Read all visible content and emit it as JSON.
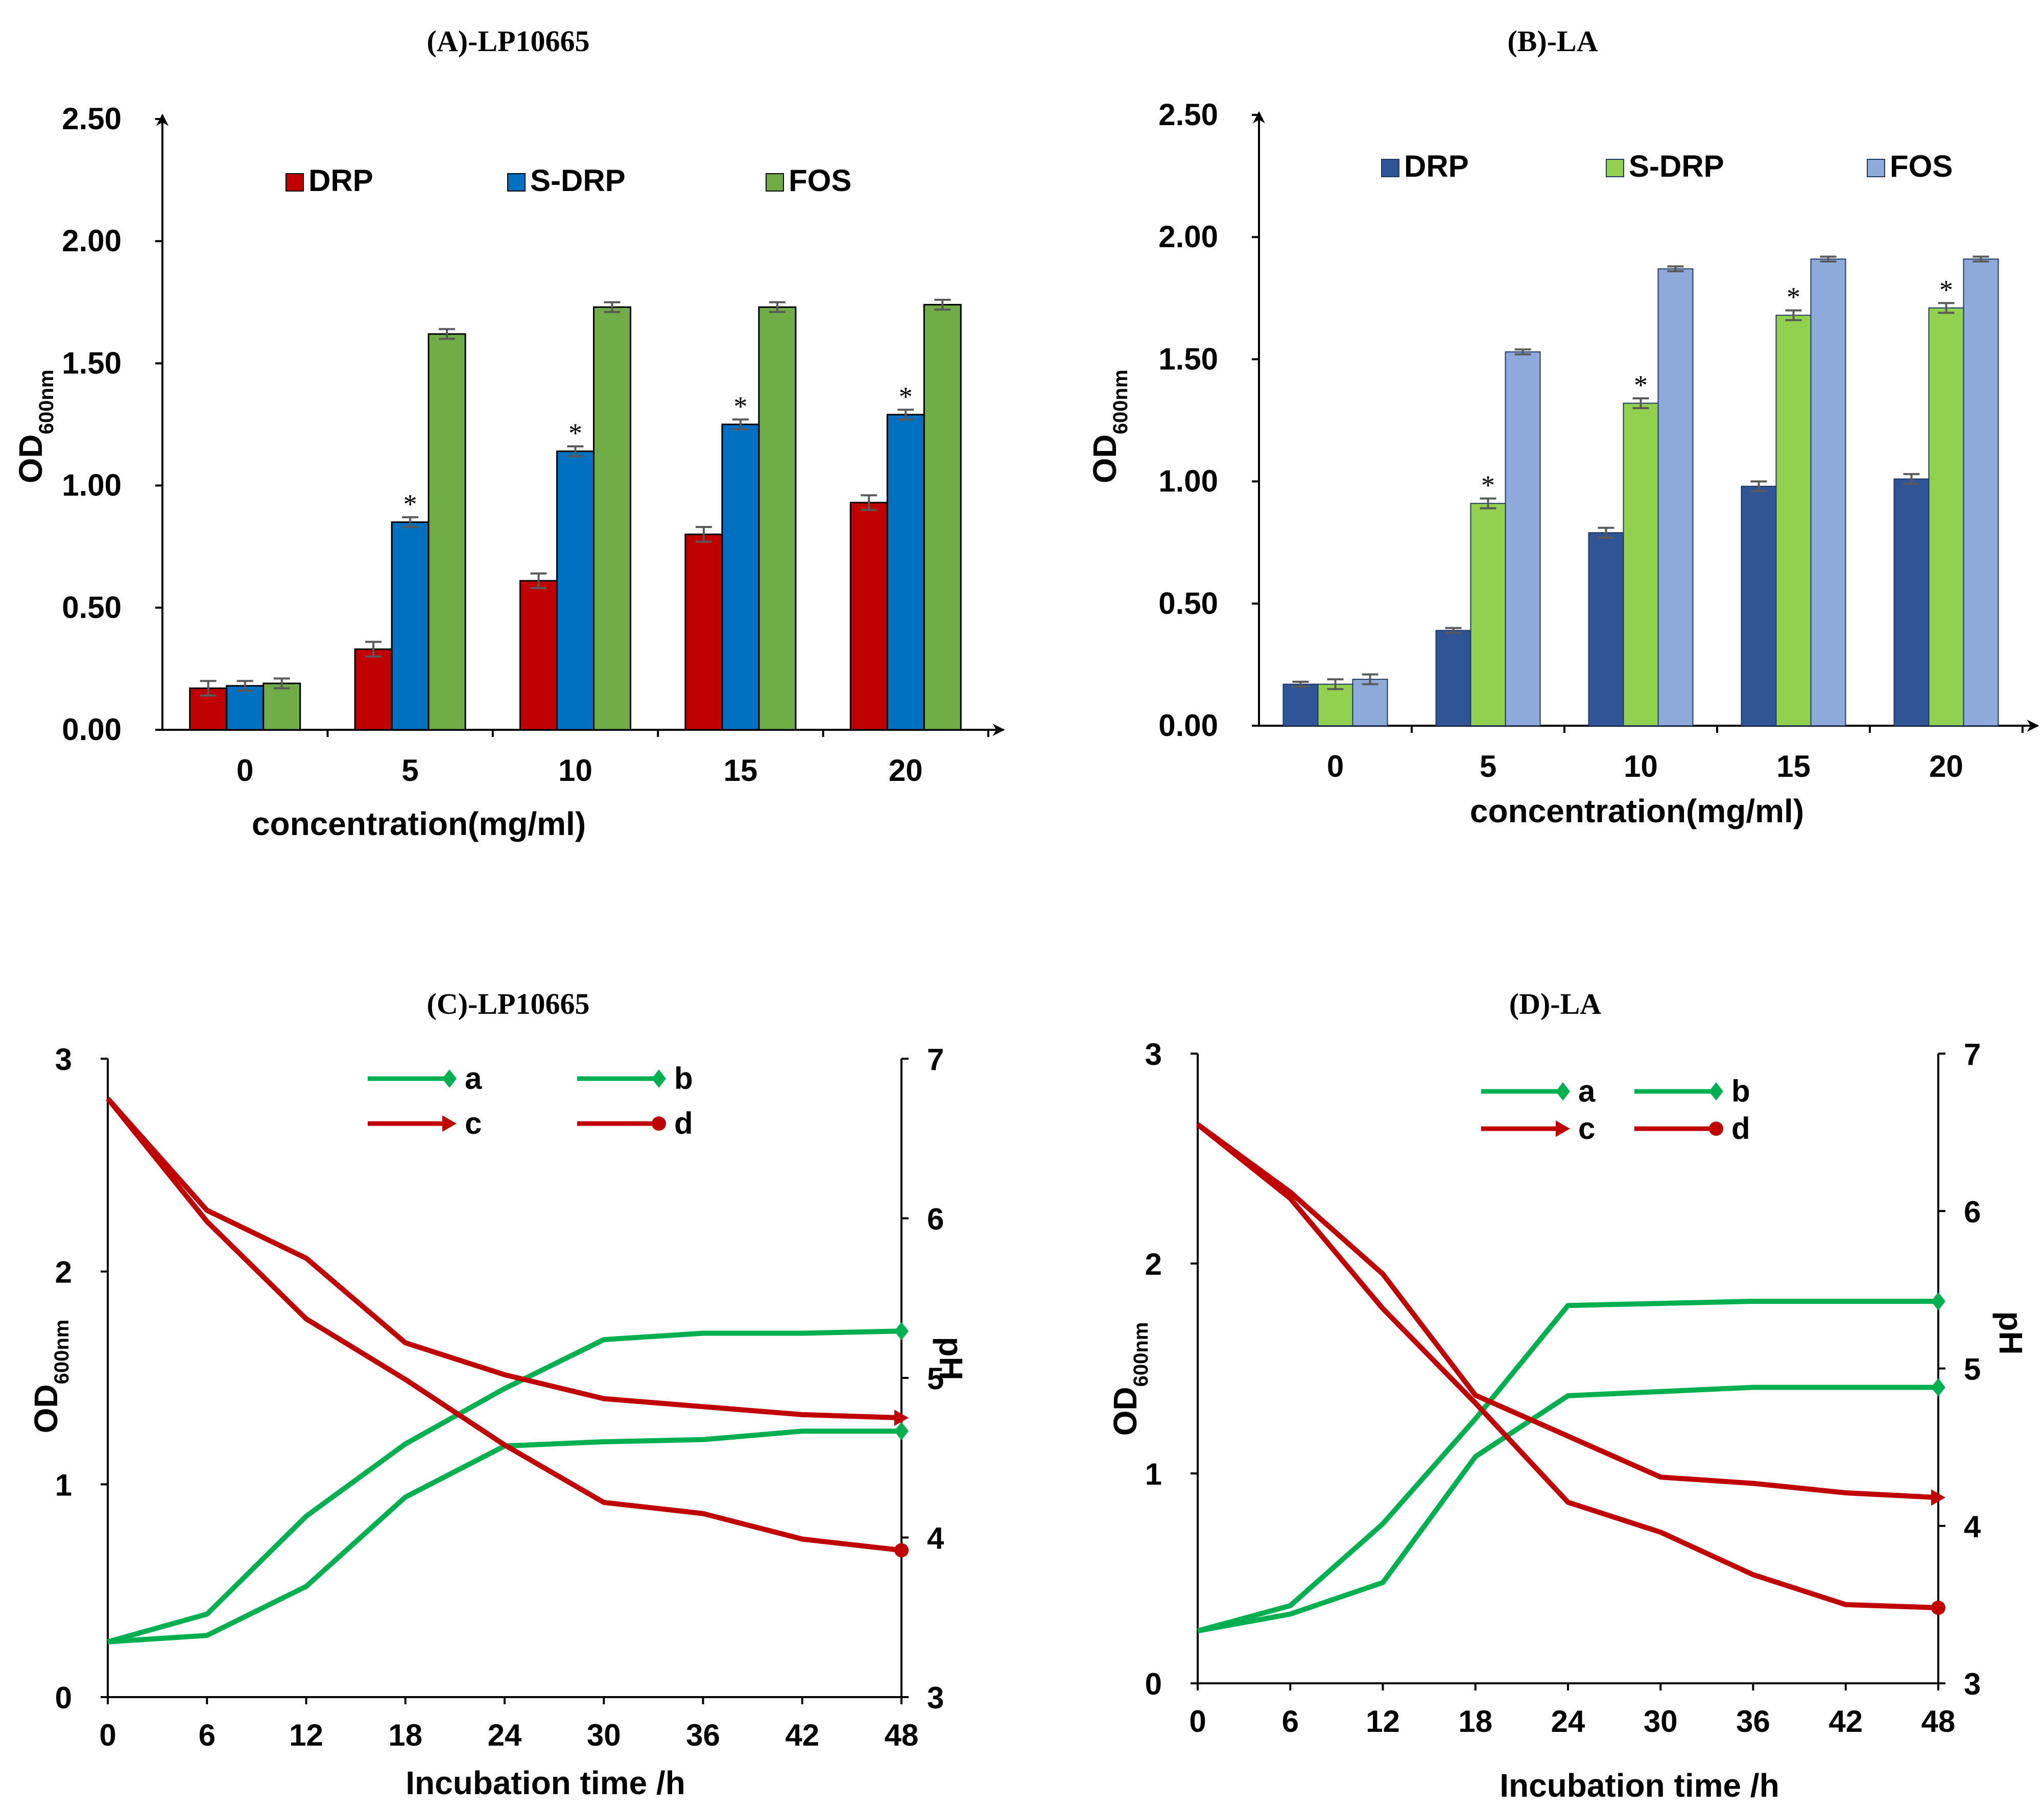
{
  "chart_data": [
    {
      "id": "A",
      "type": "bar",
      "title": "(A)-LP10665",
      "xlabel": "concentration(mg/ml)",
      "ylabel": "OD",
      "ylabel_sub": "600nm",
      "ylim": [
        0,
        2.5
      ],
      "yticks": [
        "0.00",
        "0.50",
        "1.00",
        "1.50",
        "2.00",
        "2.50"
      ],
      "categories": [
        "0",
        "5",
        "10",
        "15",
        "20"
      ],
      "series": [
        {
          "name": "DRP",
          "color": "#c00000",
          "values": [
            0.17,
            0.33,
            0.61,
            0.8,
            0.93
          ],
          "errors": [
            0.03,
            0.03,
            0.03,
            0.03,
            0.03
          ],
          "stars": [
            false,
            false,
            false,
            false,
            false
          ]
        },
        {
          "name": "S-DRP",
          "color": "#0070c0",
          "values": [
            0.18,
            0.85,
            1.14,
            1.25,
            1.29
          ],
          "errors": [
            0.02,
            0.02,
            0.02,
            0.02,
            0.02
          ],
          "stars": [
            false,
            true,
            true,
            true,
            true
          ]
        },
        {
          "name": "FOS",
          "color": "#70ad47",
          "values": [
            0.19,
            1.62,
            1.73,
            1.73,
            1.74
          ],
          "errors": [
            0.02,
            0.02,
            0.02,
            0.02,
            0.02
          ],
          "stars": [
            false,
            false,
            false,
            false,
            false
          ]
        }
      ],
      "star_symbol": "*"
    },
    {
      "id": "B",
      "type": "bar",
      "title": "(B)-LA",
      "xlabel": "concentration(mg/ml)",
      "ylabel": "OD",
      "ylabel_sub": "600nm",
      "ylim": [
        0,
        2.5
      ],
      "yticks": [
        "0.00",
        "0.50",
        "1.00",
        "1.50",
        "2.00",
        "2.50"
      ],
      "categories": [
        "0",
        "5",
        "10",
        "15",
        "20"
      ],
      "series": [
        {
          "name": "DRP",
          "color": "#2f5597",
          "values": [
            0.17,
            0.39,
            0.79,
            0.98,
            1.01
          ],
          "errors": [
            0.01,
            0.01,
            0.02,
            0.02,
            0.02
          ],
          "stars": [
            false,
            false,
            false,
            false,
            false
          ]
        },
        {
          "name": "S-DRP",
          "color": "#92d050",
          "values": [
            0.17,
            0.91,
            1.32,
            1.68,
            1.71
          ],
          "errors": [
            0.02,
            0.02,
            0.02,
            0.02,
            0.02
          ],
          "stars": [
            false,
            true,
            true,
            true,
            true
          ]
        },
        {
          "name": "FOS",
          "color": "#8eaadb",
          "values": [
            0.19,
            1.53,
            1.87,
            1.91,
            1.91
          ],
          "errors": [
            0.02,
            0.01,
            0.01,
            0.01,
            0.01
          ],
          "stars": [
            false,
            false,
            false,
            false,
            false
          ]
        }
      ],
      "star_symbol": "*"
    },
    {
      "id": "C",
      "type": "line",
      "title": "(C)-LP10665",
      "xlabel": "Incubation time /h",
      "ylabel": "OD",
      "ylabel_sub": "600nm",
      "y2label": "pH",
      "x": [
        0,
        6,
        12,
        18,
        24,
        30,
        36,
        42,
        48
      ],
      "xticks": [
        "0",
        "6",
        "12",
        "18",
        "24",
        "30",
        "36",
        "42",
        "48"
      ],
      "ylim": [
        0,
        3
      ],
      "yticks": [
        "0",
        "1",
        "2",
        "3"
      ],
      "y2lim": [
        3,
        7
      ],
      "y2ticks": [
        "3",
        "4",
        "5",
        "6",
        "7"
      ],
      "series": [
        {
          "name": "a",
          "axis": "left",
          "color": "#00b050",
          "marker": "diamond",
          "values": [
            0.26,
            0.39,
            0.85,
            1.19,
            1.45,
            1.68,
            1.71,
            1.71,
            1.72
          ]
        },
        {
          "name": "b",
          "axis": "left",
          "color": "#00b050",
          "marker": "diamond",
          "values": [
            0.26,
            0.29,
            0.52,
            0.94,
            1.18,
            1.2,
            1.21,
            1.25,
            1.25
          ]
        },
        {
          "name": "c",
          "axis": "right",
          "color": "#c00000",
          "marker": "arrow",
          "values": [
            6.75,
            6.05,
            5.75,
            5.22,
            5.02,
            4.87,
            4.82,
            4.77,
            4.75
          ]
        },
        {
          "name": "d",
          "axis": "right",
          "color": "#c00000",
          "marker": "circle",
          "values": [
            6.75,
            5.98,
            5.37,
            4.99,
            4.58,
            4.22,
            4.15,
            3.99,
            3.92
          ]
        }
      ]
    },
    {
      "id": "D",
      "type": "line",
      "title": "(D)-LA",
      "xlabel": "Incubation time /h",
      "ylabel": "OD",
      "ylabel_sub": "600nm",
      "y2label": "pH",
      "x": [
        0,
        6,
        12,
        18,
        24,
        30,
        36,
        42,
        48
      ],
      "xticks": [
        "0",
        "6",
        "12",
        "18",
        "24",
        "30",
        "36",
        "42",
        "48"
      ],
      "ylim": [
        0,
        3
      ],
      "yticks": [
        "0",
        "1",
        "2",
        "3"
      ],
      "y2lim": [
        3,
        7
      ],
      "y2ticks": [
        "3",
        "4",
        "5",
        "6",
        "7"
      ],
      "series": [
        {
          "name": "a",
          "axis": "left",
          "color": "#00b050",
          "marker": "diamond",
          "values": [
            0.25,
            0.37,
            0.76,
            1.26,
            1.8,
            1.81,
            1.82,
            1.82,
            1.82
          ]
        },
        {
          "name": "b",
          "axis": "left",
          "color": "#00b050",
          "marker": "diamond",
          "values": [
            0.25,
            0.33,
            0.48,
            1.08,
            1.37,
            1.39,
            1.41,
            1.41,
            1.41
          ]
        },
        {
          "name": "c",
          "axis": "right",
          "color": "#c00000",
          "marker": "arrow",
          "values": [
            6.55,
            6.12,
            5.6,
            4.83,
            4.57,
            4.31,
            4.27,
            4.21,
            4.18
          ]
        },
        {
          "name": "d",
          "axis": "right",
          "color": "#c00000",
          "marker": "circle",
          "values": [
            6.55,
            6.08,
            5.38,
            4.78,
            4.15,
            3.96,
            3.69,
            3.5,
            3.48
          ]
        }
      ]
    }
  ]
}
